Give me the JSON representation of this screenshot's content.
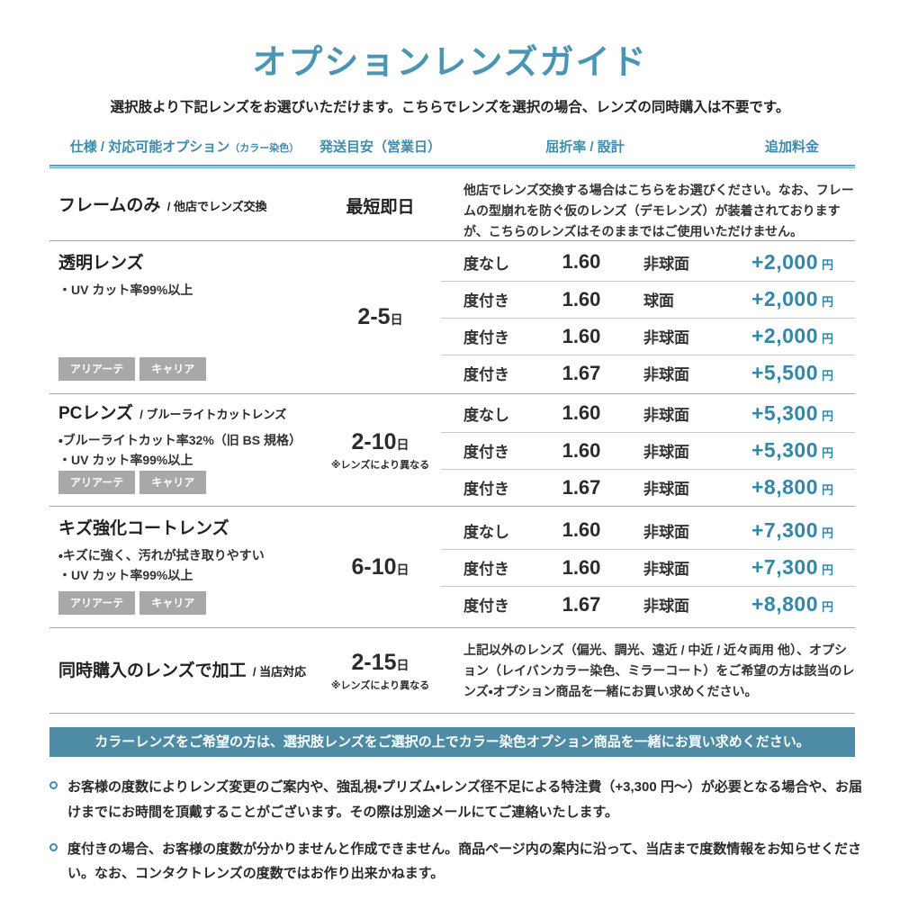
{
  "title": "オプションレンズガイド",
  "subtitle": "選択肢より下記レンズをお選びいただけます。こちらでレンズを選択の場合、レンズの同時購入は不要です。",
  "header": {
    "col1": "仕様 / 対応可能オプション",
    "col1_small": "（カラー染色）",
    "col2": "発送目安（営業日）",
    "col3": "屈折率 / 設計",
    "col4": "追加料金"
  },
  "rows": {
    "frame": {
      "title": "フレームのみ",
      "suffix": "/ 他店でレンズ交換",
      "shipping": "最短即日",
      "description": "他店でレンズ交換する場合はこちらをお選びください。なお、フレームの型崩れを防ぐ仮のレンズ（デモレンズ）が装着されておりますが、こちらのレンズはそのままではご使用いただけません。"
    },
    "clear": {
      "title": "透明レンズ",
      "features": [
        "・UV カット率99%以上"
      ],
      "badges": [
        "アリアーテ",
        "キャリア"
      ],
      "shipping": {
        "days": "2-5",
        "unit": "日"
      },
      "options": [
        {
          "type": "度なし",
          "index": "1.60",
          "design": "非球面",
          "price": "+2,000",
          "unit": "円"
        },
        {
          "type": "度付き",
          "index": "1.60",
          "design": "球面",
          "price": "+2,000",
          "unit": "円"
        },
        {
          "type": "度付き",
          "index": "1.60",
          "design": "非球面",
          "price": "+2,000",
          "unit": "円"
        },
        {
          "type": "度付き",
          "index": "1.67",
          "design": "非球面",
          "price": "+5,500",
          "unit": "円"
        }
      ]
    },
    "pc": {
      "title": "PCレンズ",
      "suffix": "/ ブルーライトカットレンズ",
      "features": [
        "・ブルーライトカット率32%（旧 BS 規格）",
        "・UV カット率99%以上"
      ],
      "badges": [
        "アリアーテ",
        "キャリア"
      ],
      "shipping": {
        "days": "2-10",
        "unit": "日",
        "note": "※レンズにより異なる"
      },
      "options": [
        {
          "type": "度なし",
          "index": "1.60",
          "design": "非球面",
          "price": "+5,300",
          "unit": "円"
        },
        {
          "type": "度付き",
          "index": "1.60",
          "design": "非球面",
          "price": "+5,300",
          "unit": "円"
        },
        {
          "type": "度付き",
          "index": "1.67",
          "design": "非球面",
          "price": "+8,800",
          "unit": "円"
        }
      ]
    },
    "scratch": {
      "title": "キズ強化コートレンズ",
      "features": [
        "・キズに強く、汚れが拭き取りやすい",
        "・UV カット率99%以上"
      ],
      "badges": [
        "アリアーテ",
        "キャリア"
      ],
      "shipping": {
        "days": "6-10",
        "unit": "日"
      },
      "options": [
        {
          "type": "度なし",
          "index": "1.60",
          "design": "非球面",
          "price": "+7,300",
          "unit": "円"
        },
        {
          "type": "度付き",
          "index": "1.60",
          "design": "非球面",
          "price": "+7,300",
          "unit": "円"
        },
        {
          "type": "度付き",
          "index": "1.67",
          "design": "非球面",
          "price": "+8,800",
          "unit": "円"
        }
      ]
    },
    "processing": {
      "title": "同時購入のレンズで加工",
      "suffix": "/ 当店対応",
      "shipping": {
        "days": "2-15",
        "unit": "日",
        "note": "※レンズにより異なる"
      },
      "description": "上記以外のレンズ（偏光、調光、遠近 / 中近 / 近々両用 他）、オプション（レイバンカラー染色、ミラーコート）をご希望の方は該当のレンズ・オプション商品を一緒にお買い求めください。"
    }
  },
  "banner": "カラーレンズをご希望の方は、選択肢レンズをご選択の上でカラー染色オプション商品を一緒にお買い求めください。",
  "notes": [
    "お客様の度数によりレンズ変更のご案内や、強乱視・プリズム・レンズ径不足による特注費（+3,300 円〜）が必要となる場合や、お届けまでにお時間を頂戴することがございます。その際は別途メールにてご連絡いたします。",
    "度付きの場合、お客様の度数が分かりませんと作成できません。商品ページ内の案内に沿って、当店まで度数情報をお知らせください。なお、コンタクトレンズの度数ではお作り出来かねます。"
  ],
  "colors": {
    "accent": "#4a94b4",
    "header_text": "#3e8cad",
    "price_blue": "#3287aa",
    "banner_bg": "#4e8ca6",
    "badge_bg": "#a8a8a8"
  }
}
